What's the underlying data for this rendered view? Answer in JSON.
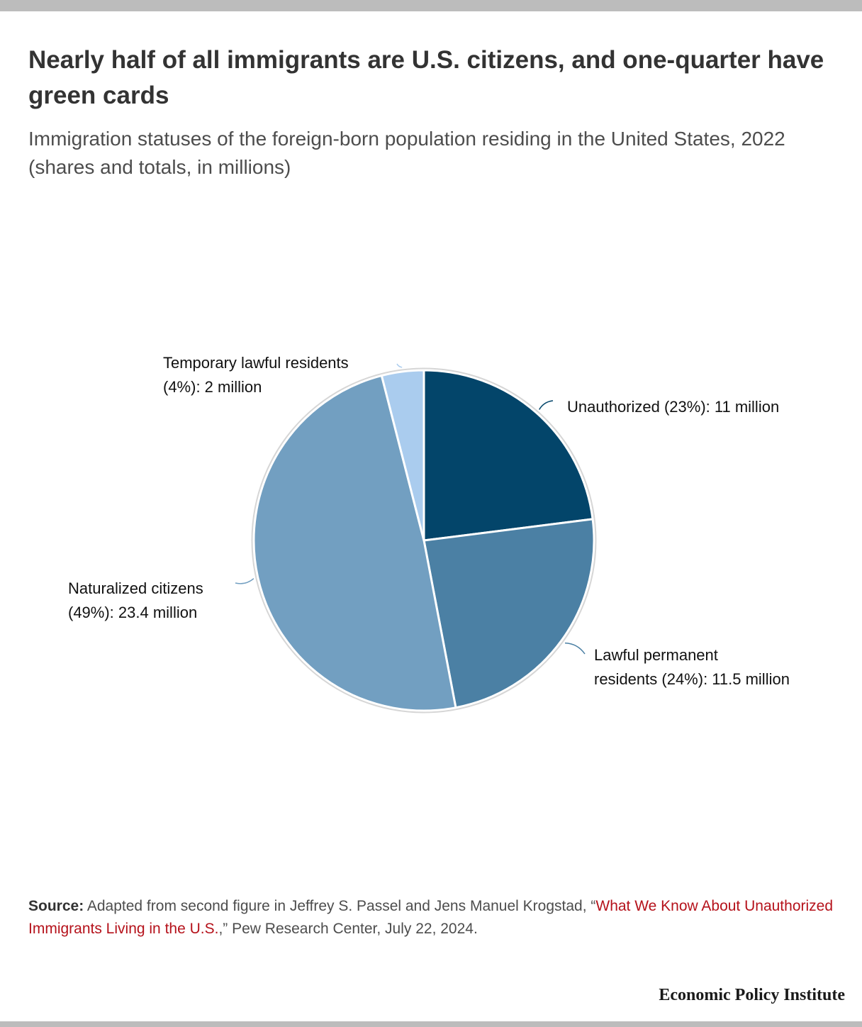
{
  "title": "Nearly half of all immigrants are U.S. citizens, and one-quarter have green cards",
  "subtitle": "Immigration statuses of the foreign-born population residing in the United States, 2022 (shares and totals, in millions)",
  "chart_data": {
    "type": "pie",
    "slices": [
      {
        "name": "Unauthorized",
        "share": 23,
        "total_millions": 11,
        "color": "#03456a",
        "label_lines": [
          "Unauthorized (23%): 11 million"
        ]
      },
      {
        "name": "Lawful permanent residents",
        "share": 24,
        "total_millions": 11.5,
        "color": "#4b80a4",
        "label_lines": [
          "Lawful permanent",
          "residents (24%): 11.5 million"
        ]
      },
      {
        "name": "Naturalized citizens",
        "share": 49,
        "total_millions": 23.4,
        "color": "#729fc1",
        "label_lines": [
          "Naturalized citizens",
          "(49%): 23.4 million"
        ]
      },
      {
        "name": "Temporary lawful residents",
        "share": 4,
        "total_millions": 2,
        "color": "#aaccee",
        "label_lines": [
          "Temporary lawful residents",
          "(4%): 2 million"
        ]
      }
    ]
  },
  "source": {
    "label": "Source:",
    "text_before": " Adapted from second figure in Jeffrey S. Passel and Jens Manuel Krogstad, “",
    "link_text": "What We Know About Unauthorized Immigrants Living in the U.S.",
    "text_after": ",” Pew Research Center, July 22, 2024."
  },
  "brand": "Economic Policy Institute"
}
